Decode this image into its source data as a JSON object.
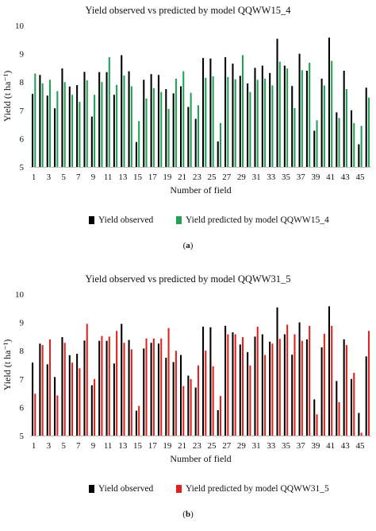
{
  "chart_data": [
    {
      "panel": "a",
      "type": "bar",
      "title": "Yield observed vs predicted by model QQWW15_4",
      "xlabel": "Number of field",
      "ylabel": "Yield (t ha⁻¹)",
      "ylim": [
        5,
        10
      ],
      "yticks": [
        "5",
        "6",
        "7",
        "8",
        "9",
        "10"
      ],
      "xtick_labels": [
        "1",
        "3",
        "5",
        "7",
        "9",
        "11",
        "13",
        "15",
        "17",
        "19",
        "21",
        "23",
        "25",
        "27",
        "29",
        "31",
        "33",
        "35",
        "37",
        "39",
        "41",
        "43",
        "45"
      ],
      "categories": [
        1,
        2,
        3,
        4,
        5,
        6,
        7,
        8,
        9,
        10,
        11,
        12,
        13,
        14,
        15,
        16,
        17,
        18,
        19,
        20,
        21,
        22,
        23,
        24,
        25,
        26,
        27,
        28,
        29,
        30,
        31,
        32,
        33,
        34,
        35,
        36,
        37,
        38,
        39,
        40,
        41,
        42,
        43,
        44,
        45,
        46
      ],
      "grid": false,
      "legend_position": "bottom",
      "caption": "a",
      "series": [
        {
          "name": "Yield observed",
          "color": "#000000",
          "values": [
            7.58,
            8.25,
            7.52,
            7.07,
            8.48,
            7.84,
            7.89,
            8.36,
            6.78,
            8.35,
            8.35,
            7.55,
            8.95,
            8.38,
            5.88,
            8.08,
            8.28,
            8.25,
            7.75,
            7.6,
            7.85,
            7.12,
            6.7,
            8.85,
            8.83,
            5.9,
            8.88,
            8.65,
            8.22,
            7.95,
            8.5,
            8.58,
            8.32,
            9.53,
            8.58,
            7.86,
            9.0,
            8.4,
            6.28,
            8.12,
            9.57,
            6.93,
            8.4,
            7.0,
            5.8,
            7.8
          ]
        },
        {
          "name": "Yield predicted by model QQWW15_4",
          "color": "#21a153",
          "values": [
            8.3,
            7.95,
            8.08,
            7.68,
            8.0,
            7.55,
            7.3,
            8.06,
            7.55,
            8.0,
            8.88,
            7.9,
            8.23,
            7.85,
            6.62,
            7.42,
            7.78,
            7.65,
            7.05,
            8.12,
            8.38,
            7.62,
            7.18,
            8.15,
            8.2,
            6.55,
            8.18,
            8.1,
            8.95,
            7.65,
            8.08,
            8.12,
            7.88,
            8.72,
            8.48,
            7.08,
            8.42,
            8.68,
            6.65,
            7.88,
            8.75,
            6.73,
            7.75,
            6.55,
            6.45,
            7.45
          ]
        }
      ]
    },
    {
      "panel": "b",
      "type": "bar",
      "title": "Yield observed vs predicted by model QQWW31_5",
      "xlabel": "Number of field",
      "ylabel": "Yield (t ha⁻¹)",
      "ylim": [
        5,
        10
      ],
      "yticks": [
        "5",
        "6",
        "7",
        "8",
        "9",
        "10"
      ],
      "xtick_labels": [
        "1",
        "3",
        "5",
        "7",
        "9",
        "11",
        "13",
        "15",
        "17",
        "19",
        "21",
        "23",
        "25",
        "27",
        "29",
        "31",
        "33",
        "35",
        "37",
        "39",
        "41",
        "43",
        "45"
      ],
      "categories": [
        1,
        2,
        3,
        4,
        5,
        6,
        7,
        8,
        9,
        10,
        11,
        12,
        13,
        14,
        15,
        16,
        17,
        18,
        19,
        20,
        21,
        22,
        23,
        24,
        25,
        26,
        27,
        28,
        29,
        30,
        31,
        32,
        33,
        34,
        35,
        36,
        37,
        38,
        39,
        40,
        41,
        42,
        43,
        44,
        45,
        46
      ],
      "grid": false,
      "legend_position": "bottom",
      "caption": "b",
      "series": [
        {
          "name": "Yield observed",
          "color": "#000000",
          "values": [
            7.58,
            8.25,
            7.52,
            7.07,
            8.48,
            7.84,
            7.89,
            8.36,
            6.78,
            8.35,
            8.35,
            7.55,
            8.95,
            8.38,
            5.88,
            8.08,
            8.28,
            8.25,
            7.75,
            7.6,
            7.85,
            7.12,
            6.7,
            8.85,
            8.83,
            5.9,
            8.88,
            8.65,
            8.22,
            7.95,
            8.5,
            8.58,
            8.32,
            9.53,
            8.58,
            7.86,
            9.0,
            8.4,
            6.28,
            8.12,
            9.57,
            6.93,
            8.4,
            7.0,
            5.8,
            7.8
          ]
        },
        {
          "name": "Yield predicted by model QQWW31_5",
          "color": "#e3211c",
          "values": [
            6.48,
            8.2,
            8.4,
            6.42,
            8.28,
            7.58,
            7.38,
            8.95,
            7.0,
            8.52,
            8.5,
            8.7,
            8.28,
            8.05,
            6.05,
            8.43,
            8.43,
            8.43,
            8.8,
            8.0,
            6.75,
            7.0,
            7.48,
            8.0,
            7.45,
            6.4,
            8.58,
            8.58,
            8.48,
            7.48,
            8.85,
            7.85,
            8.25,
            8.42,
            8.92,
            8.58,
            8.35,
            8.88,
            5.75,
            8.6,
            8.88,
            6.18,
            8.2,
            7.22,
            5.1,
            8.7
          ]
        }
      ]
    }
  ]
}
